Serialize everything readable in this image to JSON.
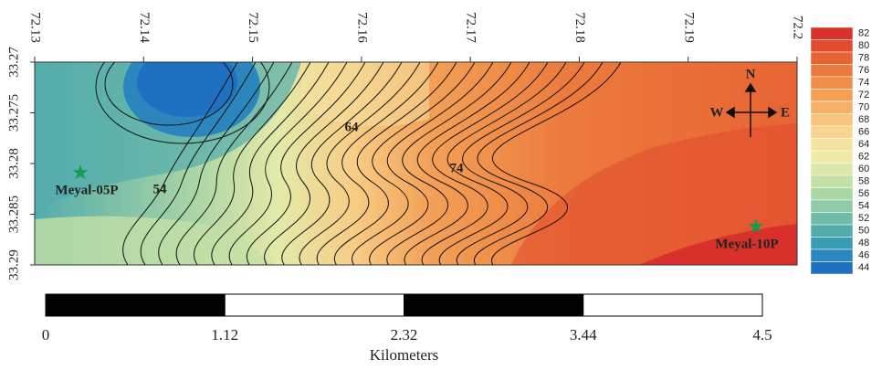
{
  "map": {
    "x_ticks": [
      72.13,
      72.14,
      72.15,
      72.16,
      72.17,
      72.18,
      72.19,
      72.2
    ],
    "y_ticks": [
      33.27,
      33.275,
      33.28,
      33.285,
      33.29
    ],
    "contour_labels": [
      54,
      64,
      74
    ],
    "wells": [
      "Meyal-05P",
      "Meyal-10P"
    ],
    "compass": {
      "north": "N",
      "west": "W",
      "east": "E"
    },
    "colorbar": {
      "ticks": [
        82,
        80,
        78,
        76,
        74,
        72,
        70,
        68,
        66,
        64,
        62,
        60,
        58,
        56,
        54,
        52,
        50,
        48,
        46,
        44
      ],
      "colors": [
        "#d8302a",
        "#e14b2e",
        "#e86434",
        "#ec7a3c",
        "#f08e48",
        "#f3a056",
        "#f5b266",
        "#f7c47a",
        "#f8d48e",
        "#f6e2a0",
        "#eeeaa8",
        "#dce8a8",
        "#c4e0a6",
        "#aad6a6",
        "#8ecaa6",
        "#70bca8",
        "#52acac",
        "#3a9cb2",
        "#2a86bc",
        "#1f70c0"
      ]
    },
    "scale_bar": {
      "ticks": [
        0,
        1.12,
        2.32,
        3.44,
        4.5
      ],
      "unit": "Kilometers"
    }
  }
}
